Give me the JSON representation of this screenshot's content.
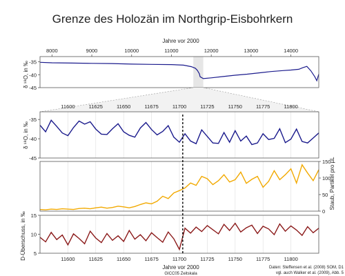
{
  "chart_data": [
    {
      "type": "line",
      "panel": "overview",
      "title": "Grenze des Holozän im Northgrip-Eisbohrkern",
      "xlabel": "Jahre vor 2000",
      "ylabel": "δ ¹⁸O, in ‰",
      "xlim": [
        7700,
        14700
      ],
      "ylim": [
        -45,
        -33
      ],
      "x_ticks": [
        8000,
        9000,
        10000,
        11000,
        12000,
        13000,
        14000
      ],
      "y_ticks": [
        -35,
        -40,
        -45
      ],
      "highlight_range": [
        11550,
        11800
      ],
      "grid": false,
      "series": [
        {
          "color": "#1a1a8c",
          "x": [
            7700,
            8000,
            8500,
            9000,
            9500,
            10000,
            10500,
            11000,
            11300,
            11500,
            11600,
            11650,
            11700,
            11720,
            11800,
            12000,
            12300,
            12600,
            12900,
            13200,
            13500,
            13800,
            14000,
            14200,
            14300,
            14400,
            14500,
            14600,
            14650,
            14700
          ],
          "y": [
            -35.2,
            -35.4,
            -35.5,
            -35.6,
            -35.7,
            -35.9,
            -36.0,
            -36.1,
            -36.3,
            -36.9,
            -37.5,
            -38.3,
            -39.6,
            -40.8,
            -41.5,
            -41.2,
            -40.7,
            -40.2,
            -39.8,
            -39.3,
            -38.8,
            -38.4,
            -38.2,
            -37.9,
            -37.3,
            -36.8,
            -38.5,
            -40.8,
            -42.3,
            -39.8
          ]
        }
      ]
    },
    {
      "type": "line",
      "panel": "detail-d18O",
      "ylabel": "δ ¹⁸O, in ‰",
      "xlim": [
        11575,
        11825
      ],
      "ylim": [
        -45,
        -33
      ],
      "x_ticks": [
        11600,
        11625,
        11650,
        11675,
        11700,
        11725,
        11750,
        11775,
        11800
      ],
      "y_ticks": [
        -35,
        -40,
        -45
      ],
      "boundary_x": 11703,
      "series": [
        {
          "color": "#1a1a8c",
          "x": [
            11575,
            11580,
            11585,
            11590,
            11595,
            11600,
            11605,
            11610,
            11615,
            11620,
            11625,
            11630,
            11635,
            11640,
            11645,
            11650,
            11655,
            11660,
            11665,
            11670,
            11675,
            11680,
            11685,
            11690,
            11695,
            11700,
            11705,
            11710,
            11715,
            11720,
            11725,
            11730,
            11735,
            11740,
            11745,
            11750,
            11755,
            11760,
            11765,
            11770,
            11775,
            11780,
            11785,
            11790,
            11795,
            11800,
            11805,
            11810,
            11815,
            11820,
            11825
          ],
          "y": [
            -36.5,
            -38.2,
            -35.2,
            -36.8,
            -38.5,
            -39.2,
            -37.1,
            -35.4,
            -36.2,
            -35.6,
            -37.5,
            -38.8,
            -38.9,
            -37.4,
            -36.1,
            -38.2,
            -39.1,
            -39.6,
            -37.2,
            -35.8,
            -37.6,
            -39.0,
            -38.1,
            -36.6,
            -39.6,
            -40.9,
            -38.7,
            -40.6,
            -41.3,
            -37.7,
            -39.4,
            -41.1,
            -41.2,
            -38.4,
            -40.9,
            -37.9,
            -40.6,
            -39.3,
            -41.5,
            -41.1,
            -38.7,
            -40.2,
            -39.9,
            -37.4,
            -41.0,
            -40.1,
            -37.5,
            -40.7,
            -41.1,
            -39.8,
            -38.5
          ]
        }
      ]
    },
    {
      "type": "line",
      "panel": "detail-dust",
      "ylabel": "Staub, Partikel pro µL",
      "xlim": [
        11575,
        11825
      ],
      "ylim": [
        0,
        150
      ],
      "y_ticks": [
        0,
        50,
        100,
        150
      ],
      "boundary_x": 11703,
      "series": [
        {
          "color": "#f2a900",
          "x": [
            11575,
            11580,
            11585,
            11590,
            11595,
            11600,
            11605,
            11610,
            11615,
            11620,
            11625,
            11630,
            11635,
            11640,
            11645,
            11650,
            11655,
            11660,
            11665,
            11670,
            11675,
            11680,
            11685,
            11690,
            11695,
            11700,
            11705,
            11710,
            11715,
            11720,
            11725,
            11730,
            11735,
            11740,
            11745,
            11750,
            11755,
            11760,
            11765,
            11770,
            11775,
            11780,
            11785,
            11790,
            11795,
            11800,
            11805,
            11810,
            11815,
            11820,
            11825
          ],
          "y": [
            5,
            4,
            6,
            5,
            7,
            6,
            5,
            8,
            9,
            7,
            10,
            12,
            9,
            11,
            15,
            13,
            10,
            14,
            20,
            25,
            22,
            30,
            45,
            38,
            55,
            62,
            70,
            85,
            78,
            105,
            98,
            80,
            92,
            110,
            88,
            95,
            118,
            84,
            96,
            105,
            72,
            90,
            122,
            95,
            110,
            128,
            85,
            140,
            115,
            92,
            125
          ]
        }
      ]
    },
    {
      "type": "line",
      "panel": "detail-d-excess",
      "xlabel": "Jahre vor 2000",
      "ylabel": "D-Überschuss, in ‰",
      "xlim": [
        11575,
        11825
      ],
      "ylim": [
        5,
        15
      ],
      "x_ticks": [
        11600,
        11625,
        11650,
        11675,
        11700,
        11725,
        11750,
        11775,
        11800
      ],
      "y_ticks": [
        5,
        10,
        15
      ],
      "boundary_x": 11703,
      "series": [
        {
          "color": "#8b1a1a",
          "x": [
            11575,
            11580,
            11585,
            11590,
            11595,
            11600,
            11605,
            11610,
            11615,
            11620,
            11625,
            11630,
            11635,
            11640,
            11645,
            11650,
            11655,
            11660,
            11665,
            11670,
            11675,
            11680,
            11685,
            11690,
            11695,
            11700,
            11705,
            11710,
            11715,
            11720,
            11725,
            11730,
            11735,
            11740,
            11745,
            11750,
            11755,
            11760,
            11765,
            11770,
            11775,
            11780,
            11785,
            11790,
            11795,
            11800,
            11805,
            11810,
            11815,
            11820,
            11825
          ],
          "y": [
            9.2,
            8.0,
            10.5,
            8.6,
            9.8,
            7.2,
            10.1,
            8.9,
            7.5,
            10.8,
            9.0,
            7.8,
            10.2,
            8.4,
            9.6,
            8.1,
            11.0,
            8.7,
            9.9,
            8.3,
            10.4,
            9.1,
            7.9,
            10.6,
            8.8,
            6.0,
            11.6,
            10.3,
            11.9,
            10.7,
            12.3,
            11.2,
            10.1,
            12.6,
            11.0,
            12.9,
            10.6,
            11.7,
            12.4,
            10.2,
            12.1,
            11.4,
            9.9,
            12.7,
            10.8,
            12.2,
            11.1,
            9.7,
            12.0,
            10.4,
            11.6
          ]
        }
      ]
    }
  ],
  "figure": {
    "title": "Grenze des Holozän im Northgrip-Eisbohrkern",
    "top_axis_label": "Jahre vor 2000",
    "bottom_axis_label": "Jahre vor 2000",
    "bottom_axis_sublabel": "GICC05 Zeitskala",
    "ylabel_overview": "δ ¹⁸O, in ‰",
    "ylabel_detail": "δ ¹⁸O, in ‰",
    "ylabel_dust": "Staub, Partikel pro µL",
    "ylabel_dexcess": "D-Überschuss, in ‰",
    "source_line1": "Daten: Steffensen et al. (2008) SOM, D1",
    "source_line2": "vgl. auch Walker et al. (2009), Abb. 5"
  }
}
